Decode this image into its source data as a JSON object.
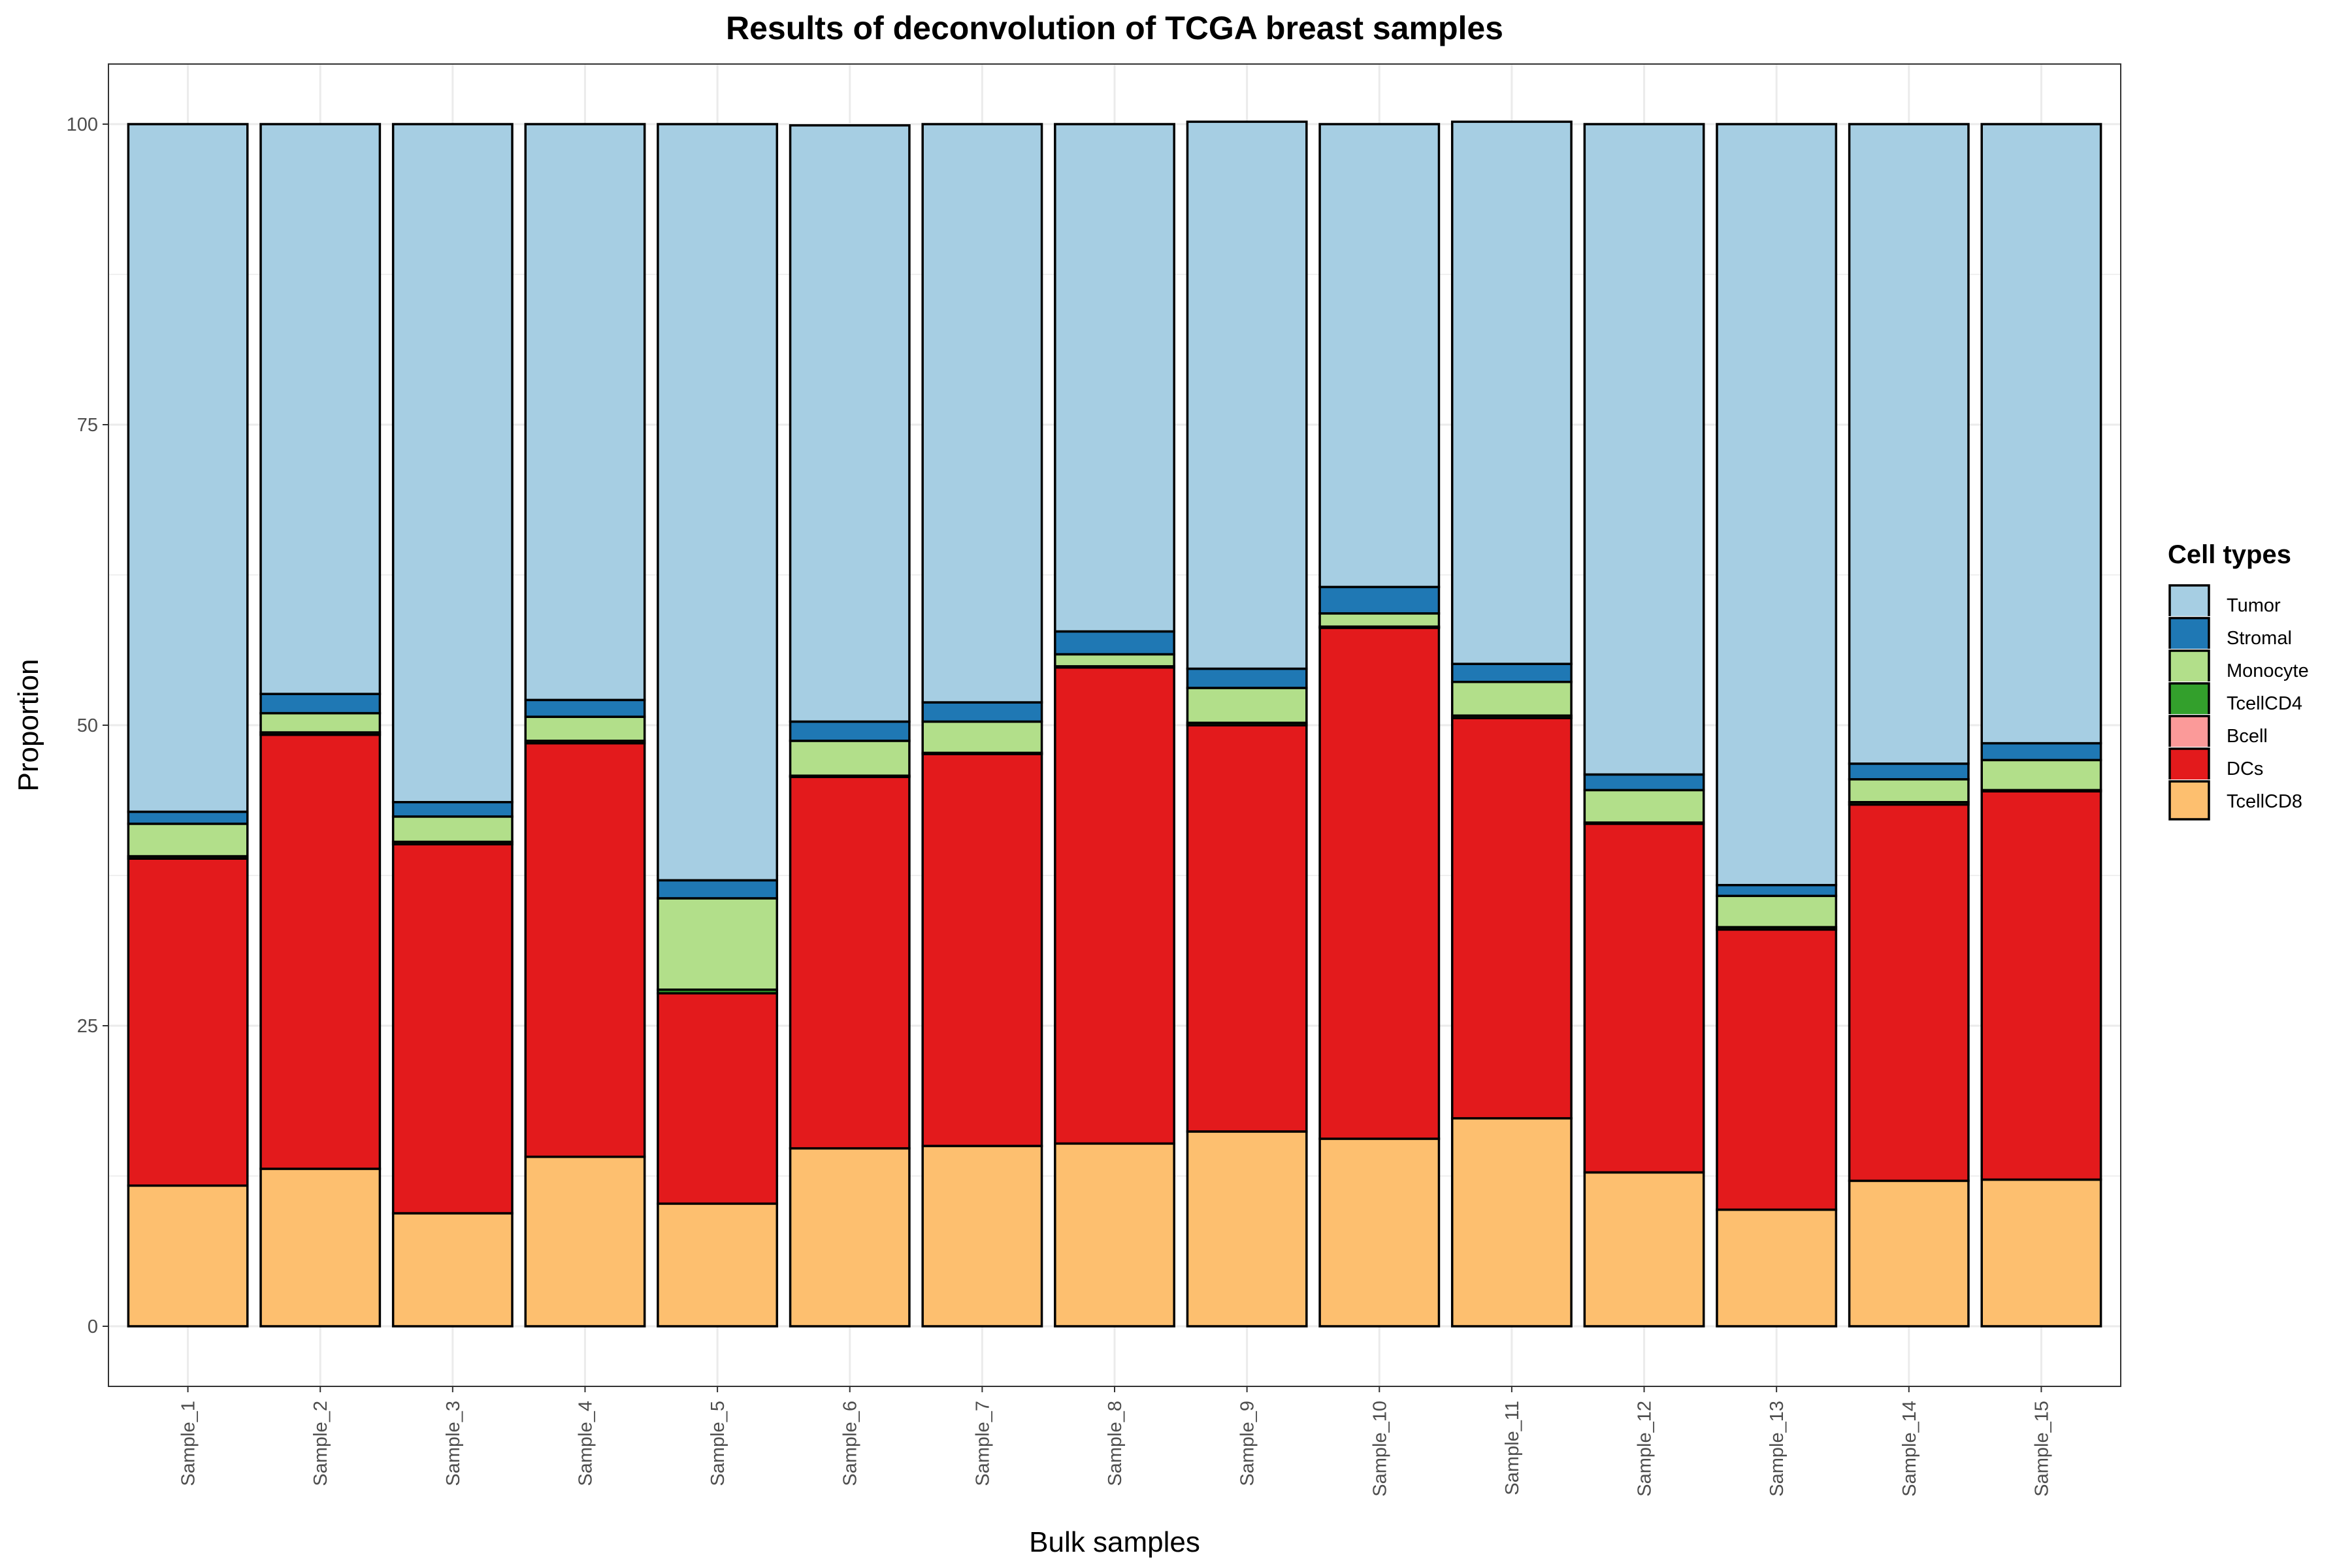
{
  "chart_data": {
    "type": "bar",
    "stacked": true,
    "title": "Results of deconvolution of TCGA breast samples",
    "xlabel": "Bulk samples",
    "ylabel": "Proportion",
    "ylim": [
      -5,
      105
    ],
    "yticks": [
      0,
      25,
      50,
      75,
      100
    ],
    "grid": true,
    "legend": {
      "title": "Cell types",
      "position": "right"
    },
    "categories": [
      "Sample_1",
      "Sample_2",
      "Sample_3",
      "Sample_4",
      "Sample_5",
      "Sample_6",
      "Sample_7",
      "Sample_8",
      "Sample_9",
      "Sample_10",
      "Sample_11",
      "Sample_12",
      "Sample_13",
      "Sample_14",
      "Sample_15"
    ],
    "stack_order_bottom_to_top": [
      "TcellCD8",
      "DCs",
      "Bcell",
      "TcellCD4",
      "Monocyte",
      "Stromal",
      "Tumor"
    ],
    "series": [
      {
        "name": "Tumor",
        "color": "#A6CEE3",
        "values": [
          57.2,
          47.4,
          56.4,
          47.9,
          62.9,
          49.6,
          48.1,
          42.2,
          45.5,
          38.5,
          45.1,
          54.1,
          63.3,
          53.2,
          51.5
        ]
      },
      {
        "name": "Stromal",
        "color": "#1F78B4",
        "values": [
          1.0,
          1.6,
          1.2,
          1.4,
          1.5,
          1.6,
          1.6,
          1.9,
          1.6,
          2.2,
          1.5,
          1.3,
          0.9,
          1.3,
          1.4
        ]
      },
      {
        "name": "Monocyte",
        "color": "#B2DF8A",
        "values": [
          2.7,
          1.6,
          2.1,
          2.0,
          7.6,
          2.9,
          2.6,
          1.0,
          2.9,
          1.1,
          2.8,
          2.7,
          2.6,
          1.9,
          2.5
        ]
      },
      {
        "name": "TcellCD4",
        "color": "#33A02C",
        "values": [
          0.2,
          0.2,
          0.2,
          0.2,
          0.3,
          0.1,
          0.1,
          0.1,
          0.2,
          0.1,
          0.2,
          0.1,
          0.2,
          0.2,
          0.1
        ]
      },
      {
        "name": "Bcell",
        "color": "#FB9A99",
        "values": [
          0,
          0,
          0,
          0,
          0,
          0,
          0,
          0,
          0,
          0,
          0,
          0,
          0,
          0,
          0
        ]
      },
      {
        "name": "DCs",
        "color": "#E31A1C",
        "values": [
          27.2,
          36.1,
          30.7,
          34.4,
          17.5,
          30.9,
          32.6,
          39.6,
          33.8,
          42.5,
          33.3,
          29.0,
          23.3,
          31.3,
          32.3
        ]
      },
      {
        "name": "TcellCD8",
        "color": "#FDBF6F",
        "values": [
          11.7,
          13.1,
          9.4,
          14.1,
          10.2,
          14.8,
          15.0,
          15.2,
          16.2,
          15.6,
          17.3,
          12.8,
          9.7,
          12.1,
          12.2
        ]
      }
    ]
  }
}
